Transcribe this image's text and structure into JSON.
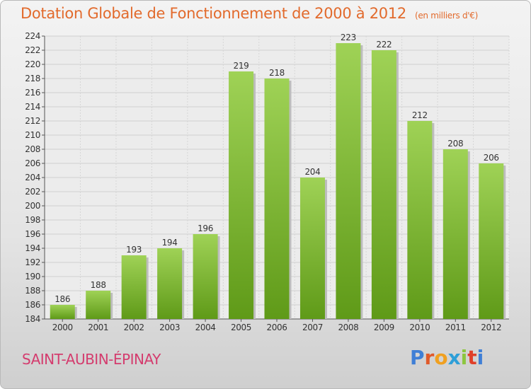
{
  "header": {
    "title": "Dotation Globale de Fonctionnement de 2000 à 2012",
    "unit": "(en milliers d'€)"
  },
  "footer": {
    "commune": "SAINT-AUBIN-ÉPINAY",
    "logo_text": "Proxiti"
  },
  "colors": {
    "title": "#e26a2c",
    "commune": "#d43c6e",
    "bar_light": "#9ccf52",
    "bar_dark": "#5f9a18"
  },
  "chart_data": {
    "type": "bar",
    "title": "Dotation Globale de Fonctionnement de 2000 à 2012",
    "subtitle": "(en milliers d'€)",
    "xlabel": "",
    "ylabel": "",
    "categories": [
      "2000",
      "2001",
      "2002",
      "2003",
      "2004",
      "2005",
      "2006",
      "2007",
      "2008",
      "2009",
      "2010",
      "2011",
      "2012"
    ],
    "values": [
      186,
      188,
      193,
      194,
      196,
      219,
      218,
      204,
      223,
      222,
      212,
      208,
      206
    ],
    "ylim": [
      184,
      224
    ],
    "ytick_step": 2,
    "yticks": [
      "184",
      "186",
      "188",
      "190",
      "192",
      "194",
      "196",
      "198",
      "200",
      "202",
      "204",
      "206",
      "208",
      "210",
      "212",
      "214",
      "216",
      "218",
      "220",
      "222",
      "224"
    ],
    "grid": true,
    "legend": "none"
  }
}
